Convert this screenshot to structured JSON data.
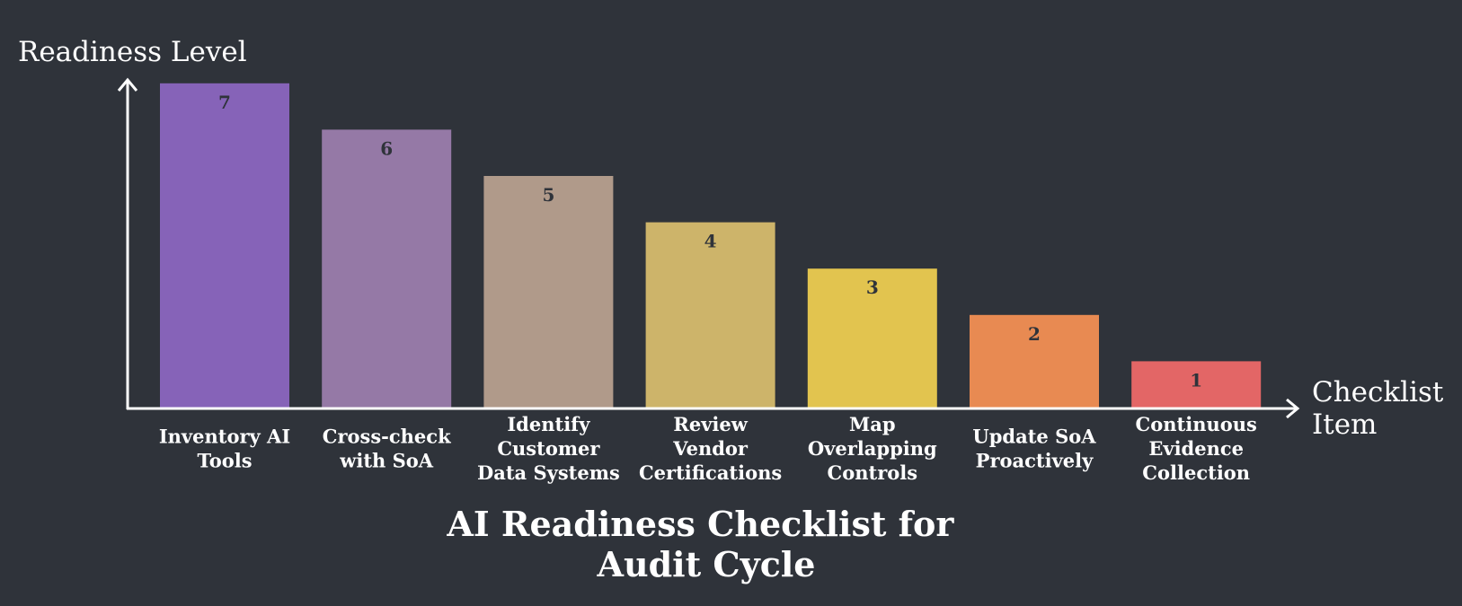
{
  "chart_data": {
    "type": "bar",
    "title": [
      "AI Readiness Checklist for",
      "Audit Cycle"
    ],
    "xlabel": [
      "Checklist",
      "Item"
    ],
    "ylabel": "Readiness Level",
    "ylim": [
      0,
      7
    ],
    "grid": false,
    "legend": "none",
    "categories": [
      [
        "Inventory AI",
        "Tools"
      ],
      [
        "Cross-check",
        "with SoA"
      ],
      [
        "Identify",
        "Customer",
        "Data Systems"
      ],
      [
        "Review",
        "Vendor",
        "Certifications"
      ],
      [
        "Map",
        "Overlapping",
        "Controls"
      ],
      [
        "Update SoA",
        "Proactively"
      ],
      [
        "Continuous",
        "Evidence",
        "Collection"
      ]
    ],
    "values": [
      7,
      6,
      5,
      4,
      3,
      2,
      1
    ],
    "colors": [
      "#8663b8",
      "#9579a6",
      "#b09a8a",
      "#cdb46a",
      "#e2c44f",
      "#e88a52",
      "#e36666"
    ]
  },
  "colors": {
    "background": "#2f333a",
    "axis": "#ffffff",
    "text": "#ffffff",
    "value_text": "#2f333a"
  }
}
